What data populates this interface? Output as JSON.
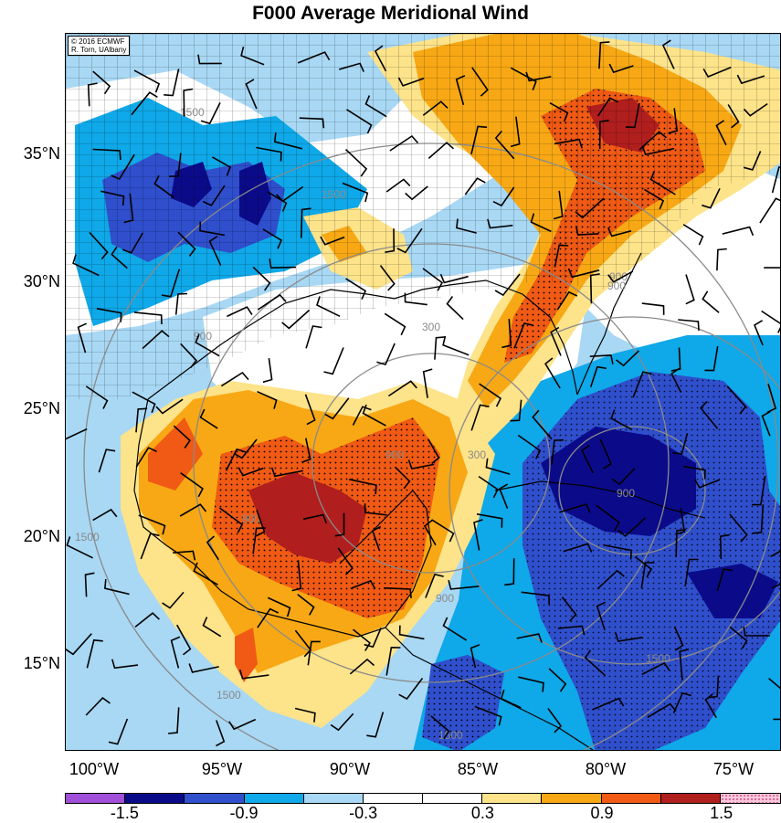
{
  "title": "F000 Average Meridional Wind",
  "credit": {
    "line1": "© 2016 ECMWF",
    "line2": "R. Torn, UAlbany"
  },
  "latitude_labels": [
    "35°N",
    "30°N",
    "25°N",
    "20°N",
    "15°N"
  ],
  "longitude_labels": [
    "100°W",
    "95°W",
    "90°W",
    "85°W",
    "80°W",
    "75°W"
  ],
  "colorbar": {
    "colors": [
      "#a04fd8",
      "#0b0b8a",
      "#2f4fcc",
      "#0fa8e8",
      "#a8d8f4",
      "#ffffff",
      "#ffffff",
      "#fde38a",
      "#f7a814",
      "#f05a14",
      "#b01e1e",
      "#f7c6da"
    ],
    "tick_labels": [
      "-1.5",
      "-0.9",
      "-0.3",
      "0.3",
      "0.9",
      "1.5"
    ]
  },
  "contour_labels": [
    "1500",
    "1500",
    "900",
    "900",
    "300",
    "900",
    "900",
    "900",
    "1500",
    "1500",
    "900",
    "1500",
    "300",
    "900",
    "1500"
  ],
  "map_colors": {
    "ocean_white": "#ffffff",
    "light_blue": "#a8d8f4",
    "mid_blue": "#0fa8e8",
    "royal_blue": "#2f4fcc",
    "navy": "#0b0b8a",
    "yellow": "#fde38a",
    "orange": "#f7a814",
    "red_orange": "#f05a14",
    "dark_red": "#b01e1e",
    "contour_gray": "#8a8a8a"
  }
}
